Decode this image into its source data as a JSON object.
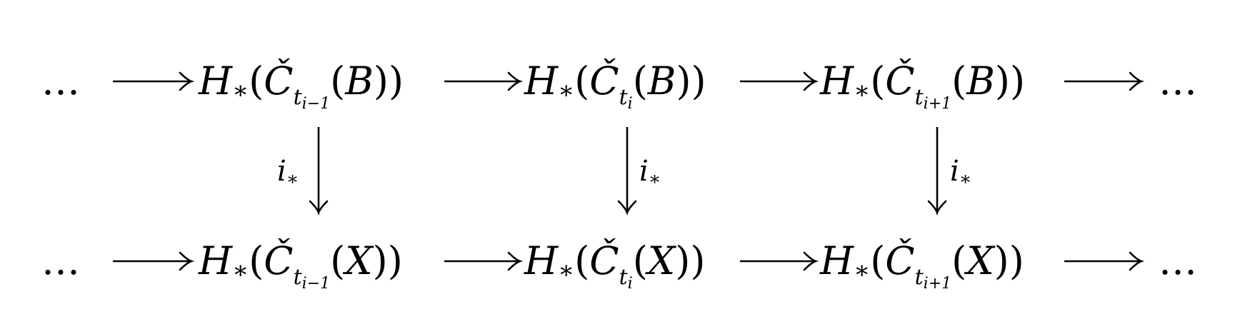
{
  "rows": [
    {
      "left_ellipsis": "…",
      "right_ellipsis": "…",
      "nodes": [
        {
          "H": "H",
          "star": "∗",
          "C": "Č",
          "t": "t",
          "idx": "i−1",
          "space": "B"
        },
        {
          "H": "H",
          "star": "∗",
          "C": "Č",
          "t": "t",
          "idx": "i",
          "space": "B"
        },
        {
          "H": "H",
          "star": "∗",
          "C": "Č",
          "t": "t",
          "idx": "i+1",
          "space": "B"
        }
      ]
    },
    {
      "left_ellipsis": "…",
      "right_ellipsis": "…",
      "nodes": [
        {
          "H": "H",
          "star": "∗",
          "C": "Č",
          "t": "t",
          "idx": "i−1",
          "space": "X"
        },
        {
          "H": "H",
          "star": "∗",
          "C": "Č",
          "t": "t",
          "idx": "i",
          "space": "X"
        },
        {
          "H": "H",
          "star": "∗",
          "C": "Č",
          "t": "t",
          "idx": "i+1",
          "space": "X"
        }
      ]
    }
  ],
  "vertical_maps": [
    {
      "base": "i",
      "sub": "∗",
      "side": "left"
    },
    {
      "base": "i",
      "sub": "∗",
      "side": "right"
    },
    {
      "base": "i",
      "sub": "∗",
      "side": "right"
    }
  ]
}
